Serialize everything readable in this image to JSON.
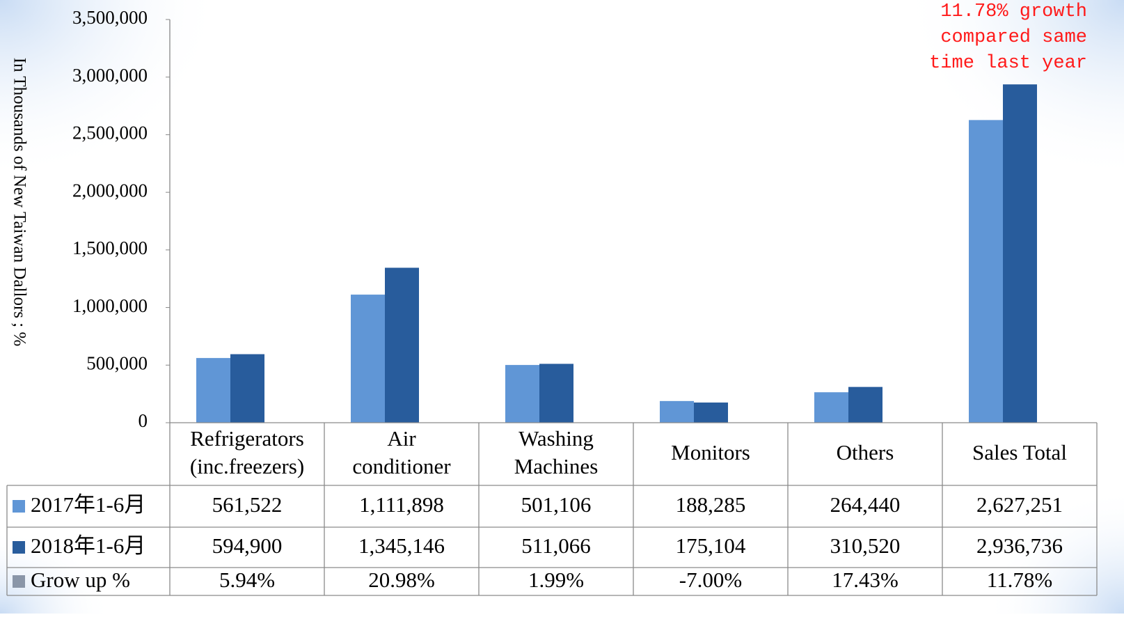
{
  "chart_data": {
    "type": "bar",
    "y_label": "In Thousands of New Taiwan Dallors ; %",
    "annotation": "11.78% growth\ncompared same\ntime last year",
    "categories": [
      "Refrigerators\n(inc.freezers)",
      "Air\nconditioner",
      "Washing\nMachines",
      "Monitors",
      "Others",
      "Sales Total"
    ],
    "series": [
      {
        "name": "2017年1-6月",
        "color": "#6096d6",
        "values": [
          561522,
          1111898,
          501106,
          188285,
          264440,
          2627251
        ],
        "value_labels": [
          "561,522",
          "1,111,898",
          "501,106",
          "188,285",
          "264,440",
          "2,627,251"
        ]
      },
      {
        "name": "2018年1-6月",
        "color": "#285c9c",
        "values": [
          594900,
          1345146,
          511066,
          175104,
          310520,
          2936736
        ],
        "value_labels": [
          "594,900",
          "1,345,146",
          "511,066",
          "175,104",
          "310,520",
          "2,936,736"
        ]
      },
      {
        "name": "Grow up %",
        "color": "#8a96a8",
        "table_only": true,
        "values": [
          5.94,
          20.98,
          1.99,
          -7.0,
          17.43,
          11.78
        ],
        "value_labels": [
          "5.94%",
          "20.98%",
          "1.99%",
          "-7.00%",
          "17.43%",
          "11.78%"
        ]
      }
    ],
    "ylim": [
      0,
      3500000
    ],
    "yticks": [
      0,
      {
        "value": 500000,
        "label": "500,000"
      },
      {
        "value": 1000000,
        "label": "1,000,000"
      },
      {
        "value": 1500000,
        "label": "1,500,000"
      },
      {
        "value": 2000000,
        "label": "2,000,000"
      },
      {
        "value": 2500000,
        "label": "2,500,000"
      },
      {
        "value": 3000000,
        "label": "3,000,000"
      },
      {
        "value": 3500000,
        "label": "3,500,000"
      }
    ]
  }
}
